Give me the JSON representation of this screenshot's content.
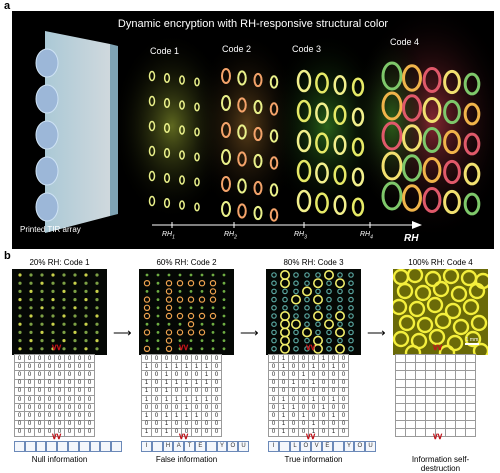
{
  "panel_a": {
    "letter": "a",
    "title": "Dynamic encryption with RH-responsive structural color",
    "array_label": "Printed TIR array",
    "codes": [
      "Code 1",
      "Code 2",
      "Code 3",
      "Code 4"
    ],
    "rh_ticks": [
      {
        "base": "RH",
        "sub": "1"
      },
      {
        "base": "RH",
        "sub": "2"
      },
      {
        "base": "RH",
        "sub": "3"
      },
      {
        "base": "RH",
        "sub": "4"
      }
    ],
    "rh_axis_label": "RH"
  },
  "panel_b": {
    "letter": "b",
    "scale_bar_label": "1 mm",
    "columns": [
      {
        "title": "20% RH: Code 1",
        "caption": "Null information",
        "grid": [
          "00000000",
          "00000000",
          "00000000",
          "00000000",
          "00000000",
          "00000000",
          "00000000",
          "00000000",
          "00000000",
          "00000000"
        ],
        "word": [
          "",
          "",
          "",
          "",
          "",
          "",
          "",
          "",
          "",
          ""
        ]
      },
      {
        "title": "60% RH: Code 2",
        "caption": "False information",
        "grid": [
          "00000000",
          "10111110",
          "00100010",
          "10111110",
          "10100000",
          "10111110",
          "00001000",
          "10111100",
          "00100000",
          "10100000"
        ],
        "word": [
          "I",
          "",
          "H",
          "A",
          "T",
          "E",
          "",
          "Y",
          "O",
          "U"
        ]
      },
      {
        "title": "80% RH: Code 3",
        "caption": "True information",
        "grid": [
          "01000100",
          "01001010",
          "00010000",
          "00101000",
          "00000000",
          "01001010",
          "01100100",
          "01010010",
          "01001000",
          "01001010"
        ],
        "word": [
          "I",
          "",
          "L",
          "O",
          "V",
          "E",
          "",
          "Y",
          "O",
          "U"
        ]
      },
      {
        "title": "100% RH: Code 4",
        "caption": "Information self-destruction",
        "grid": [
          "        ",
          "        ",
          "        ",
          "        ",
          "        ",
          "        ",
          "        ",
          "        ",
          "        ",
          "        "
        ],
        "word": [
          "",
          "",
          "",
          "",
          "",
          "",
          "",
          "",
          "",
          ""
        ]
      }
    ]
  },
  "colors": {
    "background_a": "#000000",
    "code1": "#e9f08a",
    "code2": "#f3a36a",
    "code3": "#f2f08c",
    "code4_green": "#7ec86a",
    "code4_red": "#e0596a",
    "chevron": "#c0141b",
    "word_box": "#6b89b8"
  },
  "icons": [
    "chevron-down-icon",
    "arrow-right-icon"
  ]
}
